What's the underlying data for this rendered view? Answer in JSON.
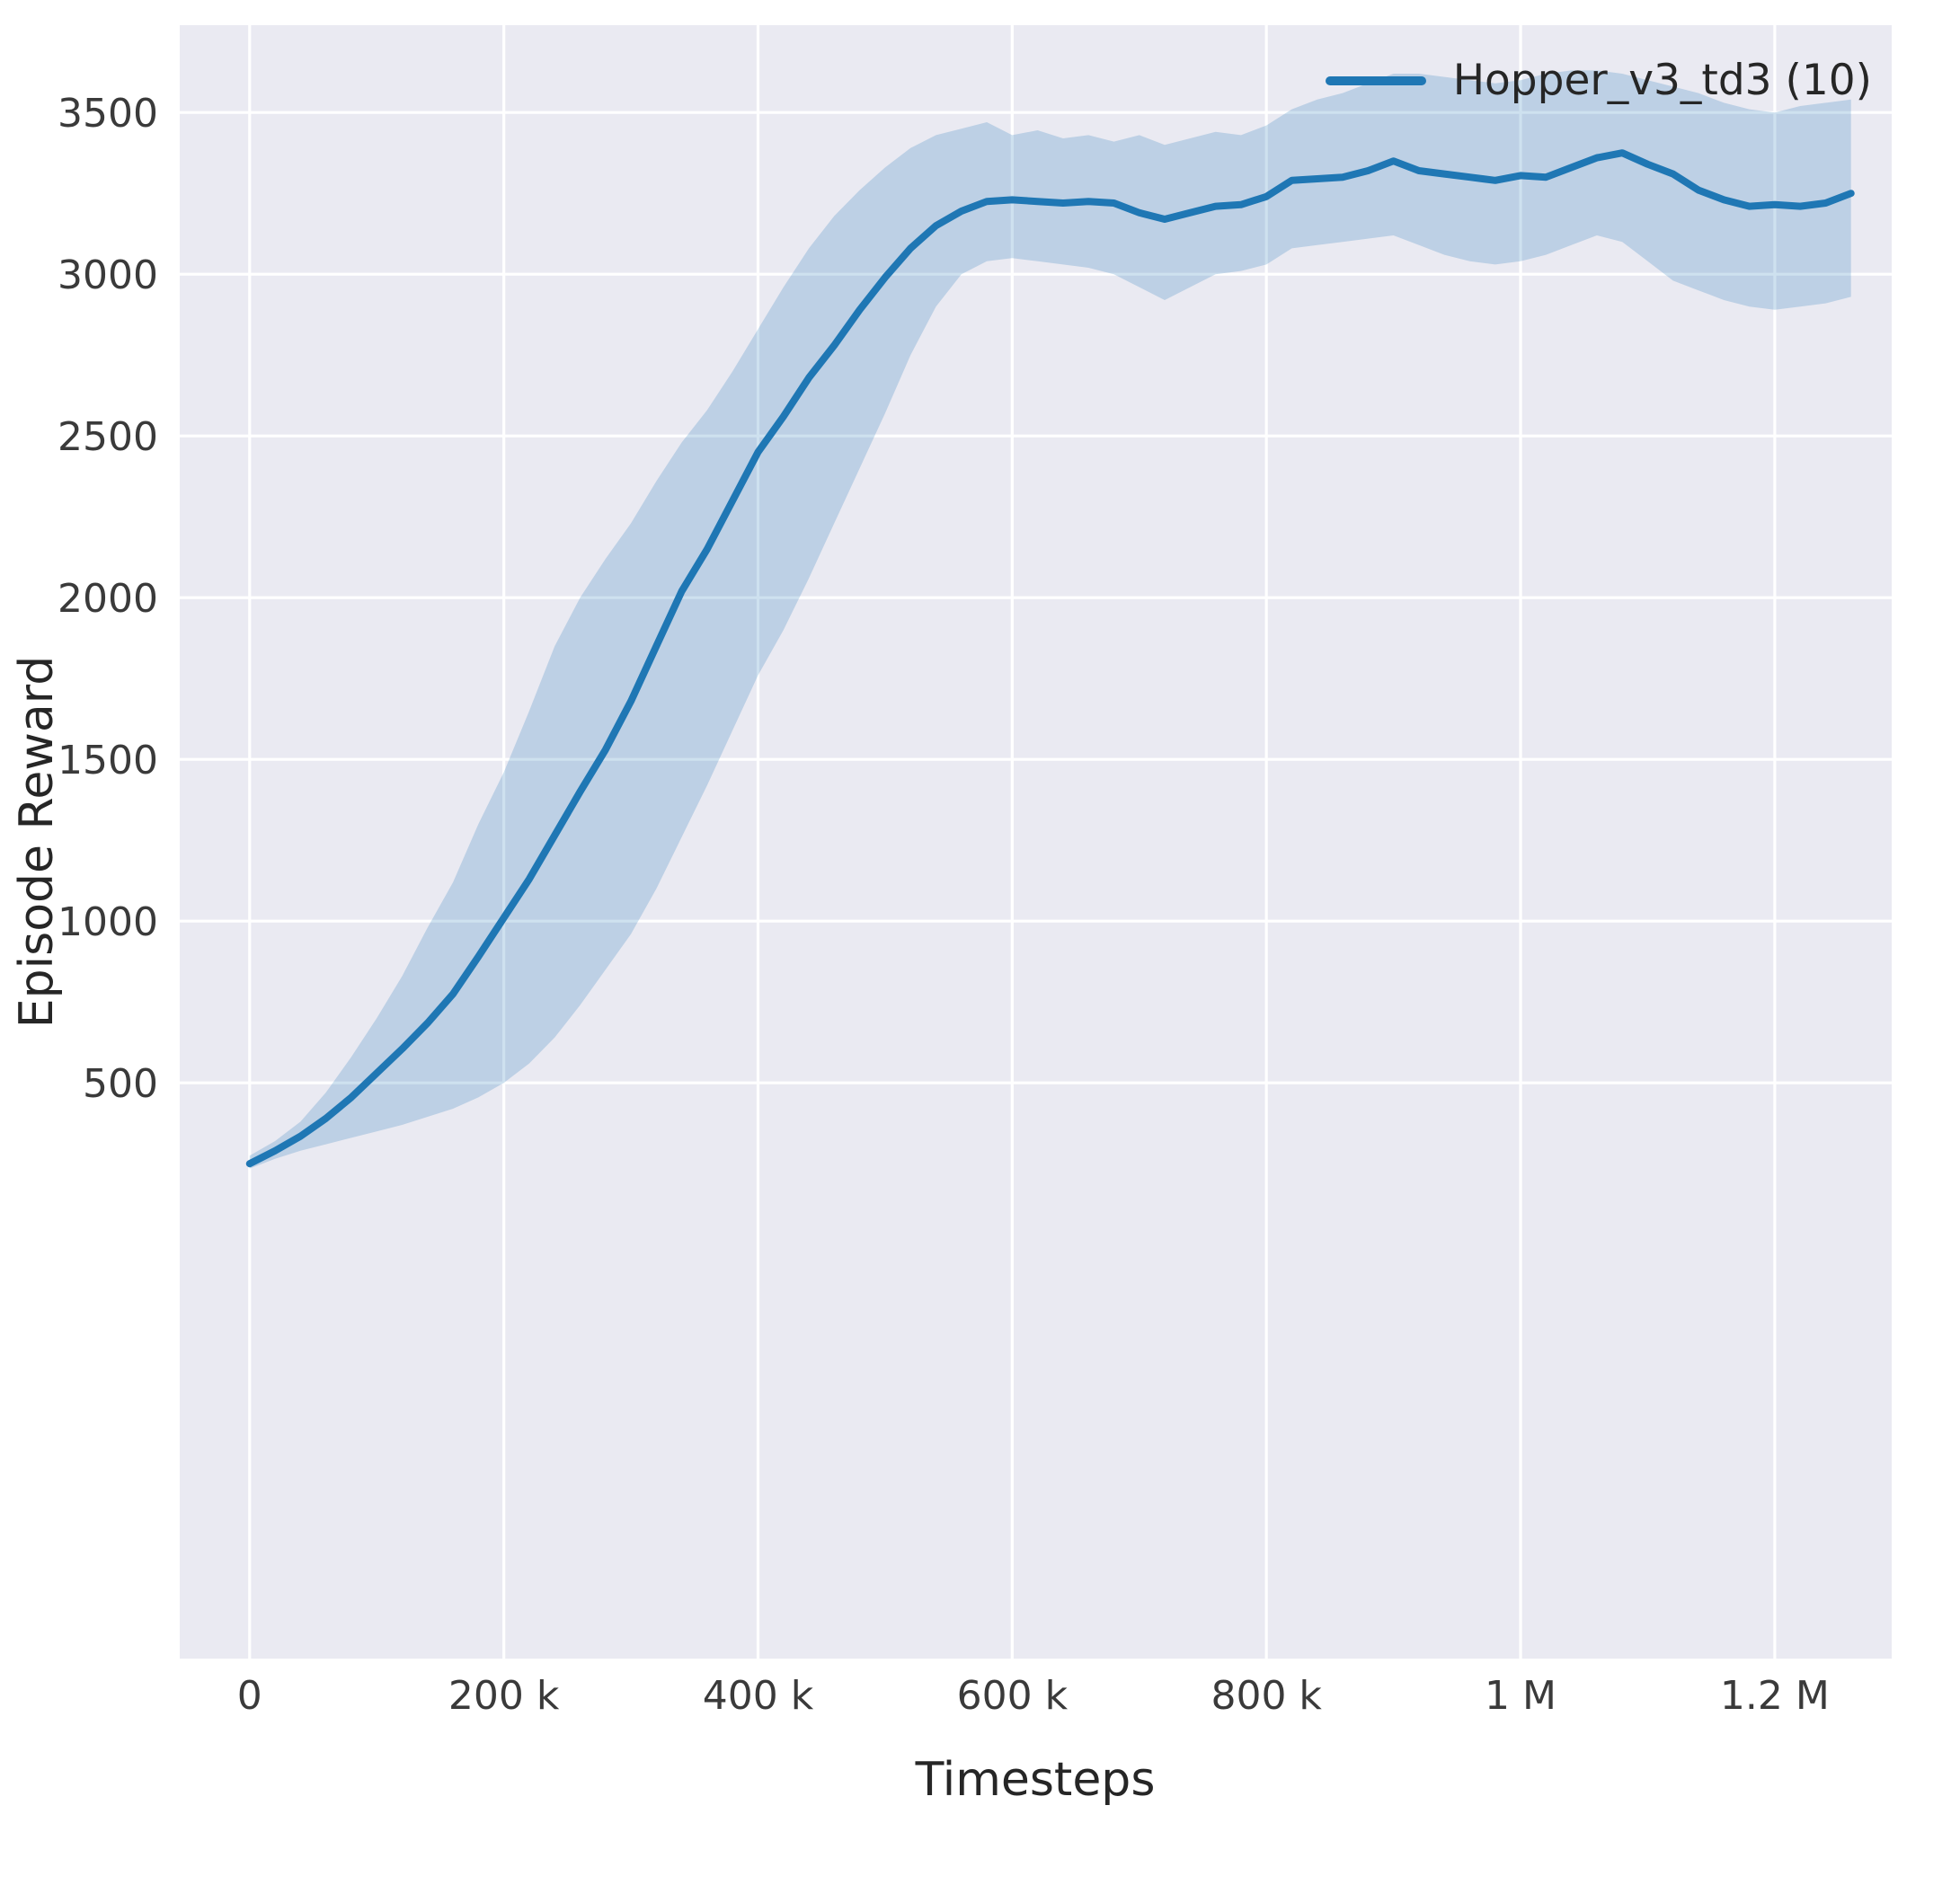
{
  "chart_data": {
    "type": "line",
    "title": "",
    "xlabel": "Timesteps",
    "ylabel": "Episode Reward",
    "legend_position": "upper right",
    "grid": true,
    "xlim": [
      -55000,
      1292000
    ],
    "ylim": [
      -1280,
      3770
    ],
    "x_ticks": {
      "values": [
        0,
        200000,
        400000,
        600000,
        800000,
        1000000,
        1200000
      ],
      "labels": [
        "0",
        "200 k",
        "400 k",
        "600 k",
        "800 k",
        "1 M",
        "1.2 M"
      ]
    },
    "y_ticks": {
      "values": [
        500,
        1000,
        1500,
        2000,
        2500,
        3000,
        3500
      ],
      "labels": [
        "500",
        "1000",
        "1500",
        "2000",
        "2500",
        "3000",
        "3500"
      ]
    },
    "colors": {
      "line": "#1f77b4",
      "band": "#1f77b4",
      "band_opacity": 0.22,
      "plot_background": "#eaeaf2",
      "grid": "#ffffff",
      "tick_label": "#3a3a3a",
      "axis_label": "#262626",
      "figure_background": "#ffffff"
    },
    "series": [
      {
        "name": "Hopper_v3_td3 (10)",
        "x": [
          0,
          20000,
          40000,
          60000,
          80000,
          100000,
          120000,
          140000,
          160000,
          180000,
          200000,
          220000,
          240000,
          260000,
          280000,
          300000,
          320000,
          340000,
          360000,
          380000,
          400000,
          420000,
          440000,
          460000,
          480000,
          500000,
          520000,
          540000,
          560000,
          580000,
          600000,
          620000,
          640000,
          660000,
          680000,
          700000,
          720000,
          740000,
          760000,
          780000,
          800000,
          820000,
          840000,
          860000,
          880000,
          900000,
          920000,
          940000,
          960000,
          980000,
          1000000,
          1020000,
          1040000,
          1060000,
          1080000,
          1100000,
          1120000,
          1140000,
          1160000,
          1180000,
          1200000,
          1220000,
          1240000,
          1260000
        ],
        "mean": [
          250,
          290,
          335,
          390,
          455,
          530,
          605,
          685,
          775,
          890,
          1010,
          1130,
          1265,
          1400,
          1530,
          1680,
          1850,
          2020,
          2150,
          2300,
          2450,
          2560,
          2680,
          2780,
          2890,
          2990,
          3080,
          3150,
          3195,
          3225,
          3230,
          3225,
          3220,
          3225,
          3220,
          3190,
          3170,
          3190,
          3210,
          3215,
          3240,
          3290,
          3295,
          3300,
          3320,
          3350,
          3320,
          3310,
          3300,
          3290,
          3305,
          3300,
          3330,
          3360,
          3375,
          3340,
          3310,
          3260,
          3230,
          3210,
          3215,
          3210,
          3220,
          3250
        ],
        "lower": [
          235,
          265,
          290,
          310,
          330,
          350,
          370,
          395,
          420,
          455,
          500,
          560,
          640,
          740,
          850,
          960,
          1100,
          1260,
          1420,
          1590,
          1760,
          1900,
          2060,
          2230,
          2400,
          2570,
          2750,
          2900,
          3000,
          3040,
          3050,
          3040,
          3030,
          3020,
          3000,
          2960,
          2920,
          2960,
          3000,
          3010,
          3030,
          3080,
          3090,
          3100,
          3110,
          3120,
          3090,
          3060,
          3040,
          3030,
          3040,
          3060,
          3090,
          3120,
          3100,
          3040,
          2980,
          2950,
          2920,
          2900,
          2890,
          2900,
          2910,
          2930
        ],
        "upper": [
          275,
          320,
          380,
          470,
          580,
          700,
          830,
          980,
          1120,
          1300,
          1460,
          1650,
          1850,
          2000,
          2120,
          2230,
          2360,
          2480,
          2580,
          2700,
          2830,
          2960,
          3080,
          3180,
          3260,
          3330,
          3390,
          3430,
          3450,
          3470,
          3430,
          3445,
          3420,
          3430,
          3410,
          3430,
          3400,
          3420,
          3440,
          3430,
          3460,
          3510,
          3540,
          3560,
          3590,
          3620,
          3620,
          3610,
          3600,
          3590,
          3600,
          3620,
          3630,
          3630,
          3620,
          3600,
          3580,
          3560,
          3530,
          3510,
          3500,
          3520,
          3530,
          3540
        ]
      }
    ]
  }
}
